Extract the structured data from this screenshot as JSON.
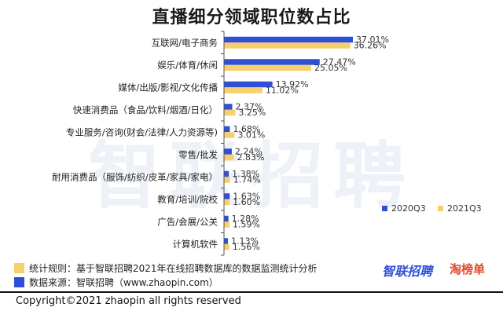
{
  "title": "直播细分领域职位数占比",
  "watermark": "智联招聘",
  "colors": {
    "series1": "#2E4FD6",
    "series2": "#F7CF6B",
    "axis": "#555555"
  },
  "legend": {
    "position": "bottom-right"
  },
  "chart_data": {
    "type": "bar",
    "orientation": "horizontal",
    "title": "直播细分领域职位数占比",
    "categories": [
      "互联网/电子商务",
      "娱乐/体育/休闲",
      "媒体/出版/影视/文化传播",
      "快速消费品（食品/饮料/烟酒/日化）",
      "专业服务/咨询(财会/法律/人力资源等)",
      "零售/批发",
      "耐用消费品（服饰/纺织/皮革/家具/家电）",
      "教育/培训/院校",
      "广告/会展/公关",
      "计算机软件"
    ],
    "series": [
      {
        "name": "2020Q3",
        "values": [
          37.01,
          27.47,
          13.92,
          2.37,
          1.68,
          2.24,
          1.38,
          1.63,
          1.28,
          1.13
        ],
        "labels": [
          "37.01%",
          "27.47%",
          "13.92%",
          "2.37%",
          "1.68%",
          "2.24%",
          "1.38%",
          "1.63%",
          "1.28%",
          "1.13%"
        ]
      },
      {
        "name": "2021Q3",
        "values": [
          36.26,
          25.05,
          11.02,
          3.25,
          3.01,
          2.83,
          1.74,
          1.6,
          1.59,
          1.56
        ],
        "labels": [
          "36.26%",
          "25.05%",
          "11.02%",
          "3.25%",
          "3.01%",
          "2.83%",
          "1.74%",
          "1.60%",
          "1.59%",
          "1.56%"
        ]
      }
    ],
    "xlim": [
      0,
      37.01
    ],
    "grid": false,
    "legend": "bottom-right"
  },
  "notes": {
    "rule": "统计规则：基于智联招聘2021年在线招聘数据库的数据监测统计分析",
    "source": "数据来源：智联招聘（www.zhaopin.com）"
  },
  "logos": {
    "zhilian": "智联招聘",
    "taobang": "淘榜单"
  },
  "copyright": "Copyright©2021 zhaopin all rights reserved"
}
